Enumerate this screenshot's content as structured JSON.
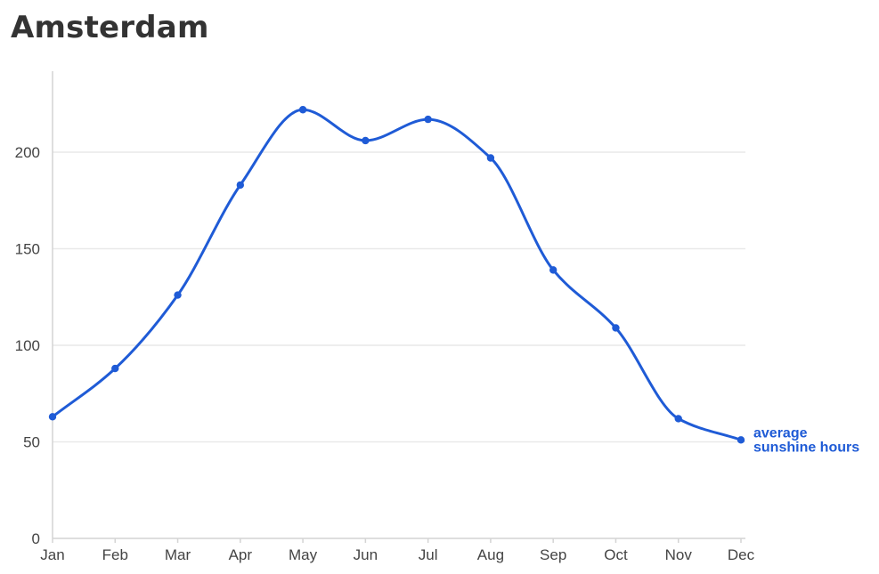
{
  "colors": {
    "series": "#1f5bd6",
    "grid": "#e9e9e9",
    "axis": "#d4d4d4",
    "tick_text": "#444444",
    "title": "#333333"
  },
  "chart_data": {
    "type": "line",
    "title": "Amsterdam",
    "xlabel": "",
    "ylabel": "",
    "categories": [
      "Jan",
      "Feb",
      "Mar",
      "Apr",
      "May",
      "Jun",
      "Jul",
      "Aug",
      "Sep",
      "Oct",
      "Nov",
      "Dec"
    ],
    "series": [
      {
        "name": "average sunshine hours",
        "label_lines": [
          "average",
          "sunshine hours"
        ],
        "values": [
          63,
          88,
          126,
          183,
          222,
          206,
          217,
          197,
          139,
          109,
          62,
          51
        ]
      }
    ],
    "ylim": [
      0,
      240
    ],
    "yticks": [
      0,
      50,
      100,
      150,
      200
    ],
    "grid": true,
    "curve": "smooth",
    "series_label_placement": "end-of-line"
  }
}
